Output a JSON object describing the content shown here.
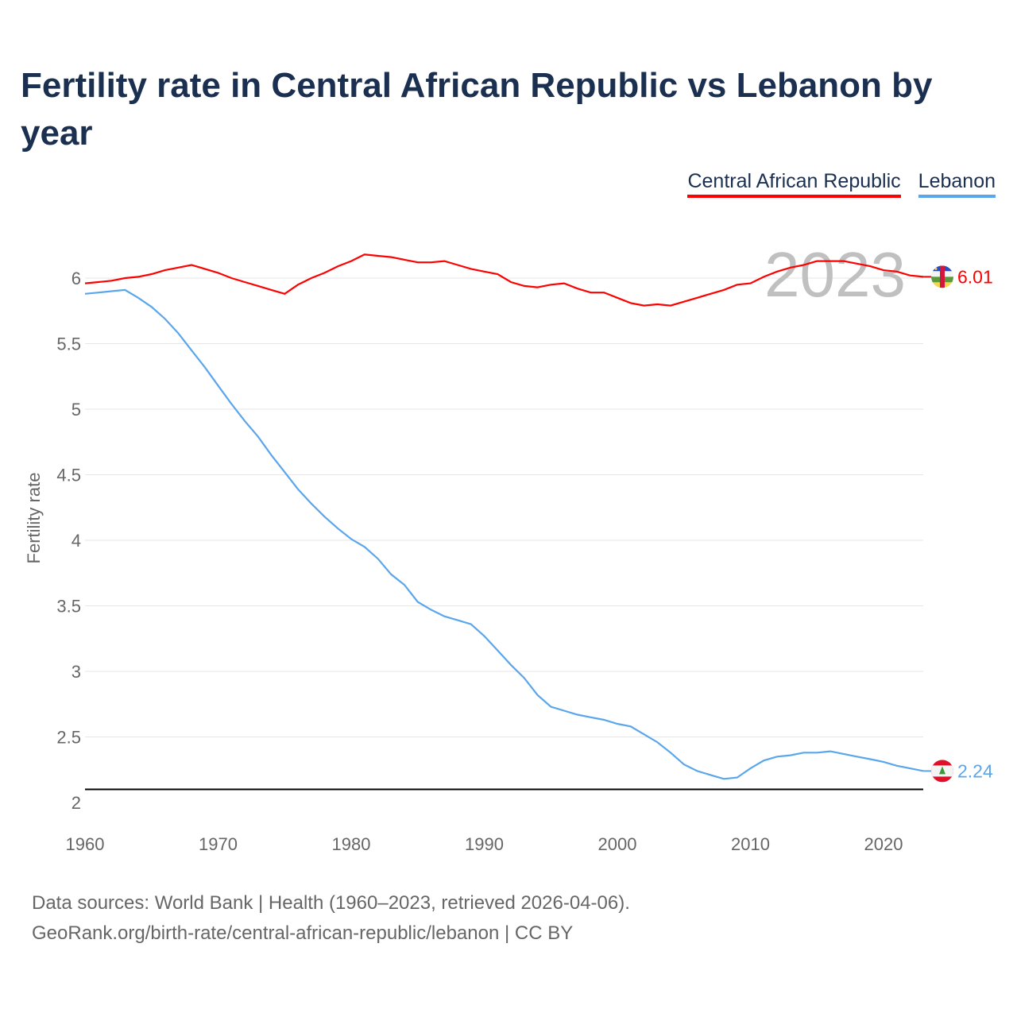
{
  "chart_data": {
    "type": "line",
    "title": "Fertility rate in Central African Republic vs Lebanon by year",
    "xlabel": "",
    "ylabel": "Fertility rate",
    "xlim": [
      1960,
      2023
    ],
    "ylim": [
      2,
      6.25
    ],
    "xticks": [
      1960,
      1970,
      1980,
      1990,
      2000,
      2010,
      2020
    ],
    "yticks": [
      2,
      2.5,
      3,
      3.5,
      4,
      4.5,
      5,
      5.5,
      6
    ],
    "ytick_labels": [
      "2",
      "2.5",
      "3",
      "3.5",
      "4",
      "4.5",
      "5",
      "5.5",
      "6"
    ],
    "grid": true,
    "legend_position": "top-right",
    "year_watermark": "2023",
    "reference_line": 2.1,
    "x": [
      1960,
      1961,
      1962,
      1963,
      1964,
      1965,
      1966,
      1967,
      1968,
      1969,
      1970,
      1971,
      1972,
      1973,
      1974,
      1975,
      1976,
      1977,
      1978,
      1979,
      1980,
      1981,
      1982,
      1983,
      1984,
      1985,
      1986,
      1987,
      1988,
      1989,
      1990,
      1991,
      1992,
      1993,
      1994,
      1995,
      1996,
      1997,
      1998,
      1999,
      2000,
      2001,
      2002,
      2003,
      2004,
      2005,
      2006,
      2007,
      2008,
      2009,
      2010,
      2011,
      2012,
      2013,
      2014,
      2015,
      2016,
      2017,
      2018,
      2019,
      2020,
      2021,
      2022,
      2023
    ],
    "series": [
      {
        "name": "Central African Republic",
        "color": "#ff0000",
        "end_label": "6.01",
        "values": [
          5.96,
          5.97,
          5.98,
          6.0,
          6.01,
          6.03,
          6.06,
          6.08,
          6.1,
          6.07,
          6.04,
          6.0,
          5.97,
          5.94,
          5.91,
          5.88,
          5.95,
          6.0,
          6.04,
          6.09,
          6.13,
          6.18,
          6.17,
          6.16,
          6.14,
          6.12,
          6.12,
          6.13,
          6.1,
          6.07,
          6.05,
          6.03,
          5.97,
          5.94,
          5.93,
          5.95,
          5.96,
          5.92,
          5.89,
          5.89,
          5.85,
          5.81,
          5.79,
          5.8,
          5.79,
          5.82,
          5.85,
          5.88,
          5.91,
          5.95,
          5.96,
          6.01,
          6.05,
          6.08,
          6.1,
          6.13,
          6.13,
          6.13,
          6.11,
          6.09,
          6.06,
          6.05,
          6.02,
          6.01
        ]
      },
      {
        "name": "Lebanon",
        "color": "#5aa6ec",
        "end_label": "2.24",
        "values": [
          5.88,
          5.89,
          5.9,
          5.91,
          5.85,
          5.78,
          5.69,
          5.58,
          5.45,
          5.32,
          5.18,
          5.04,
          4.91,
          4.79,
          4.65,
          4.52,
          4.39,
          4.28,
          4.18,
          4.09,
          4.01,
          3.95,
          3.86,
          3.74,
          3.66,
          3.53,
          3.47,
          3.42,
          3.39,
          3.36,
          3.27,
          3.16,
          3.05,
          2.95,
          2.82,
          2.73,
          2.7,
          2.67,
          2.65,
          2.63,
          2.6,
          2.58,
          2.52,
          2.46,
          2.38,
          2.29,
          2.24,
          2.21,
          2.18,
          2.19,
          2.26,
          2.32,
          2.35,
          2.36,
          2.38,
          2.38,
          2.39,
          2.37,
          2.35,
          2.33,
          2.31,
          2.28,
          2.26,
          2.24
        ]
      }
    ]
  },
  "footer": {
    "line1": "Data sources: World Bank | Health (1960–2023, retrieved 2026-04-06).",
    "line2": "GeoRank.org/birth-rate/central-african-republic/lebanon | CC BY"
  }
}
